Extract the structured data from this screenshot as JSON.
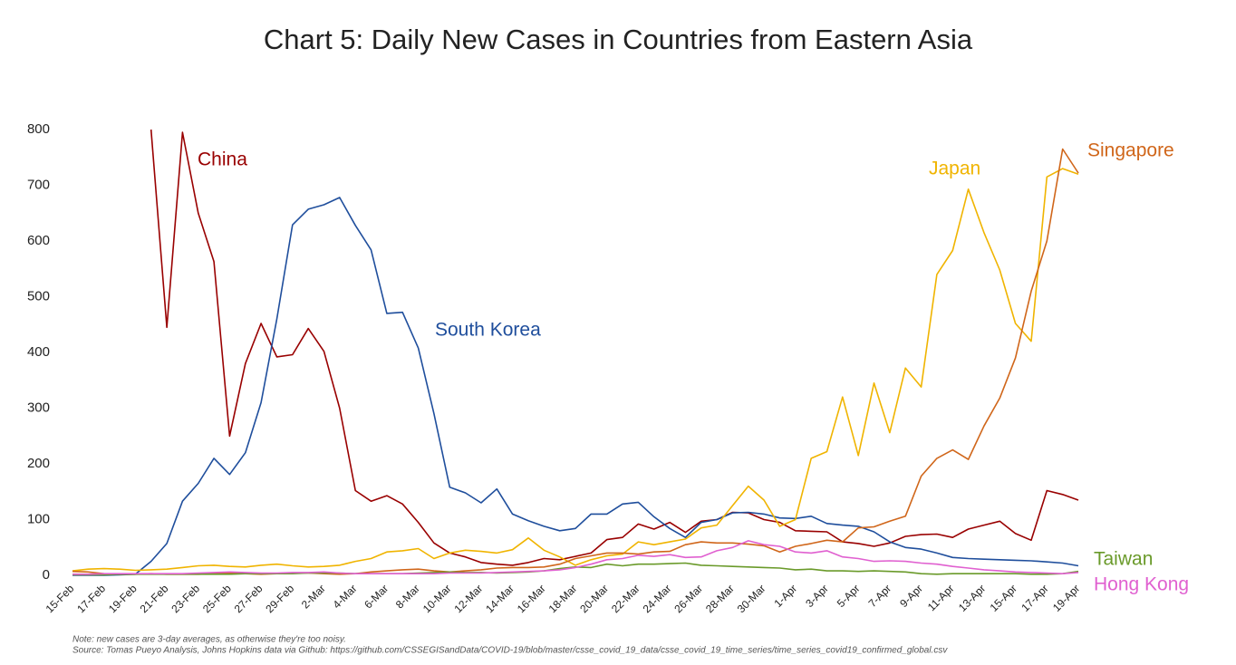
{
  "chart_data": {
    "type": "line",
    "title": "Chart 5: Daily New Cases in Countries from Eastern Asia",
    "notes": [
      "Note: new cases are 3-day averages, as otherwise they're too noisy.",
      "Source: Tomas Pueyo Analysis, Johns Hopkins data via Github: https://github.com/CSSEGISandData/COVID-19/blob/master/csse_covid_19_data/csse_covid_19_time_series/time_series_covid19_confirmed_global.csv"
    ],
    "categories": [
      "15-Feb",
      null,
      "17-Feb",
      null,
      "19-Feb",
      null,
      "21-Feb",
      null,
      "23-Feb",
      null,
      "25-Feb",
      null,
      "27-Feb",
      null,
      "29-Feb",
      null,
      "2-Mar",
      null,
      "4-Mar",
      null,
      "6-Mar",
      null,
      "8-Mar",
      null,
      "10-Mar",
      null,
      "12-Mar",
      null,
      "14-Mar",
      null,
      "16-Mar",
      null,
      "18-Mar",
      null,
      "20-Mar",
      null,
      "22-Mar",
      null,
      "24-Mar",
      null,
      "26-Mar",
      null,
      "28-Mar",
      null,
      "30-Mar",
      null,
      "1-Apr",
      null,
      "3-Apr",
      null,
      "5-Apr",
      null,
      "7-Apr",
      null,
      "9-Apr",
      null,
      "11-Apr",
      null,
      "13-Apr",
      null,
      "15-Apr",
      null,
      "17-Apr",
      null,
      "19-Apr"
    ],
    "ylim": [
      0,
      800
    ],
    "yticks": [
      0,
      100,
      200,
      300,
      400,
      500,
      600,
      700,
      800
    ],
    "grid": false,
    "series": [
      {
        "name": "China",
        "color": "#990000",
        "values": [
          null,
          null,
          null,
          null,
          null,
          800,
          445,
          795,
          650,
          563,
          250,
          380,
          452,
          392,
          396,
          443,
          402,
          300,
          152,
          133,
          143,
          128,
          95,
          58,
          40,
          33,
          23,
          20,
          18,
          23,
          30,
          28,
          34,
          40,
          64,
          68,
          92,
          83,
          95,
          77,
          97,
          100,
          113,
          112,
          100,
          95,
          80,
          79,
          78,
          60,
          57,
          52,
          58,
          70,
          73,
          74,
          68,
          83,
          90,
          97,
          75,
          63,
          152,
          145,
          135
        ]
      },
      {
        "name": "South Korea",
        "color": "#1f4e9c",
        "values": [
          0,
          0,
          0,
          1,
          2,
          25,
          57,
          133,
          165,
          210,
          181,
          220,
          310,
          460,
          629,
          657,
          665,
          678,
          628,
          584,
          470,
          472,
          408,
          290,
          158,
          148,
          130,
          155,
          110,
          98,
          88,
          80,
          84,
          110,
          110,
          128,
          131,
          105,
          84,
          68,
          95,
          100,
          112,
          113,
          110,
          103,
          102,
          106,
          93,
          90,
          88,
          78,
          60,
          50,
          47,
          40,
          32,
          30,
          29,
          28,
          27,
          26,
          24,
          22,
          17
        ]
      },
      {
        "name": "Japan",
        "color": "#f0b400",
        "values": [
          8,
          11,
          12,
          11,
          9,
          10,
          11,
          14,
          17,
          18,
          16,
          15,
          18,
          20,
          17,
          15,
          16,
          18,
          25,
          30,
          42,
          44,
          48,
          30,
          40,
          45,
          43,
          40,
          46,
          67,
          45,
          33,
          18,
          28,
          35,
          38,
          60,
          55,
          60,
          65,
          85,
          90,
          125,
          160,
          135,
          88,
          100,
          210,
          222,
          320,
          215,
          345,
          256,
          372,
          338,
          540,
          583,
          693,
          615,
          548,
          452,
          420,
          715,
          730,
          720
        ]
      },
      {
        "name": "Singapore",
        "color": "#d0661a",
        "values": [
          7,
          6,
          3,
          2,
          2,
          3,
          2,
          2,
          2,
          3,
          4,
          3,
          2,
          3,
          4,
          4,
          3,
          2,
          3,
          6,
          8,
          10,
          11,
          8,
          6,
          8,
          10,
          13,
          14,
          14,
          15,
          20,
          30,
          35,
          40,
          40,
          38,
          42,
          43,
          55,
          60,
          58,
          58,
          56,
          53,
          42,
          52,
          57,
          63,
          60,
          85,
          87,
          97,
          106,
          178,
          210,
          225,
          208,
          268,
          318,
          390,
          510,
          600,
          765,
          722
        ]
      },
      {
        "name": "Taiwan",
        "color": "#6a9a2a",
        "values": [
          1,
          1,
          1,
          2,
          2,
          2,
          2,
          2,
          2,
          2,
          2,
          3,
          3,
          3,
          3,
          4,
          4,
          4,
          3,
          3,
          3,
          3,
          4,
          5,
          6,
          5,
          5,
          4,
          5,
          6,
          8,
          12,
          15,
          14,
          20,
          17,
          20,
          20,
          21,
          22,
          18,
          17,
          16,
          15,
          14,
          13,
          10,
          11,
          8,
          8,
          7,
          8,
          7,
          6,
          3,
          2,
          3,
          3,
          3,
          3,
          3,
          2,
          2,
          3,
          7
        ]
      },
      {
        "name": "Hong Kong",
        "color": "#e060d0",
        "values": [
          2,
          2,
          3,
          3,
          3,
          3,
          3,
          3,
          4,
          5,
          6,
          5,
          4,
          4,
          5,
          5,
          6,
          4,
          3,
          3,
          3,
          3,
          3,
          3,
          4,
          4,
          4,
          5,
          6,
          7,
          8,
          10,
          14,
          20,
          28,
          30,
          36,
          34,
          37,
          32,
          33,
          44,
          50,
          62,
          55,
          52,
          42,
          40,
          44,
          33,
          30,
          25,
          26,
          25,
          22,
          20,
          16,
          13,
          10,
          8,
          6,
          5,
          4,
          3,
          5
        ]
      }
    ]
  }
}
